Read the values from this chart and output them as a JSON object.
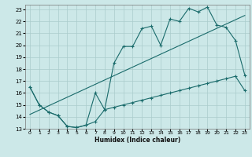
{
  "title": "",
  "xlabel": "Humidex (Indice chaleur)",
  "bg_color": "#cce8e8",
  "grid_color": "#aacccc",
  "line_color": "#1a6b6b",
  "xlim": [
    -0.5,
    23.5
  ],
  "ylim": [
    13,
    23.4
  ],
  "xticks": [
    0,
    1,
    2,
    3,
    4,
    5,
    6,
    7,
    8,
    9,
    10,
    11,
    12,
    13,
    14,
    15,
    16,
    17,
    18,
    19,
    20,
    21,
    22,
    23
  ],
  "yticks": [
    13,
    14,
    15,
    16,
    17,
    18,
    19,
    20,
    21,
    22,
    23
  ],
  "line1_x": [
    0,
    1,
    2,
    3,
    4,
    5,
    6,
    7,
    8,
    9,
    10,
    11,
    12,
    13,
    14,
    15,
    16,
    17,
    18,
    19,
    20,
    21,
    22,
    23
  ],
  "line1_y": [
    16.5,
    15.0,
    14.4,
    14.1,
    13.2,
    13.1,
    13.3,
    16.0,
    14.6,
    18.5,
    19.9,
    19.9,
    21.4,
    21.6,
    20.0,
    22.2,
    22.0,
    23.1,
    22.8,
    23.2,
    21.7,
    21.5,
    20.4,
    17.5
  ],
  "line2_x": [
    0,
    1,
    2,
    3,
    4,
    5,
    6,
    7,
    8,
    9,
    10,
    11,
    12,
    13,
    14,
    15,
    16,
    17,
    18,
    19,
    20,
    21,
    22,
    23
  ],
  "line2_y": [
    16.5,
    15.0,
    14.4,
    14.1,
    13.2,
    13.1,
    13.3,
    13.6,
    14.6,
    14.8,
    15.0,
    15.2,
    15.4,
    15.6,
    15.8,
    16.0,
    16.2,
    16.4,
    16.6,
    16.8,
    17.0,
    17.2,
    17.4,
    16.2
  ],
  "line3_x": [
    0,
    23
  ],
  "line3_y": [
    14.2,
    22.5
  ]
}
